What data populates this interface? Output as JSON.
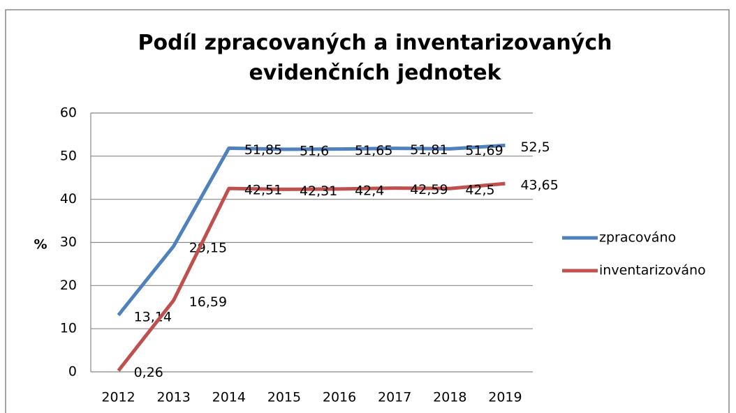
{
  "chart_data": {
    "type": "line",
    "title": "Podíl zpracovaných a inventarizovaných evidenčních jednotek",
    "y_label": "%",
    "categories": [
      "2012",
      "2013",
      "2014",
      "2015",
      "2016",
      "2017",
      "2018",
      "2019"
    ],
    "series": [
      {
        "name": "zpracováno",
        "color": "#4f81bd",
        "values": [
          13.14,
          29.15,
          51.85,
          51.6,
          51.65,
          51.81,
          51.69,
          52.5
        ],
        "value_labels": [
          "13,14",
          "29,15",
          "51,85",
          "51,6",
          "51,65",
          "51,81",
          "51,69",
          "52,5"
        ]
      },
      {
        "name": "inventarizováno",
        "color": "#c0504d",
        "values": [
          0.26,
          16.59,
          42.51,
          42.31,
          42.4,
          42.59,
          42.5,
          43.65
        ],
        "value_labels": [
          "0,26",
          "16,59",
          "42,51",
          "42,31",
          "42,4",
          "42,59",
          "42,5",
          "43,65"
        ]
      }
    ],
    "ylim": [
      0,
      60
    ],
    "yticks": [
      0,
      10,
      20,
      30,
      40,
      50,
      60
    ],
    "grid": true,
    "legend": "right"
  }
}
